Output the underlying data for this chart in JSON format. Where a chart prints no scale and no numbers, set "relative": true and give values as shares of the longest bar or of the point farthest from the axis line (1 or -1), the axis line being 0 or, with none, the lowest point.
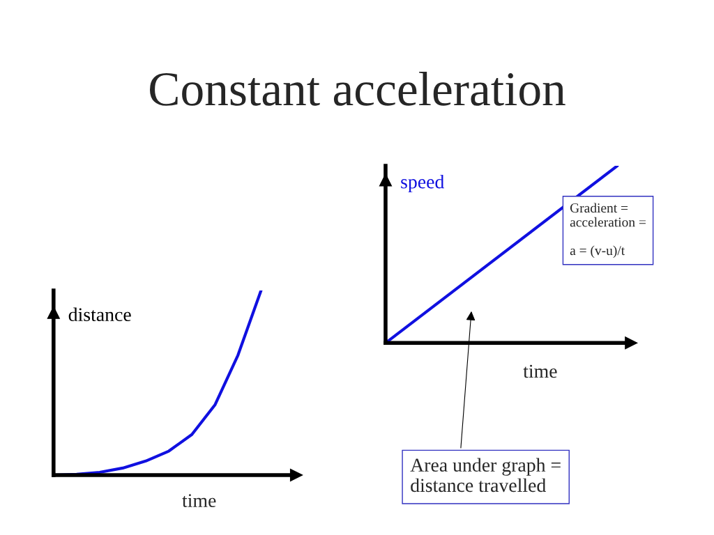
{
  "chart_data": [
    {
      "type": "other",
      "title": "Constant acceleration"
    },
    {
      "type": "line",
      "xlabel": "time",
      "ylabel": "distance",
      "relative": true,
      "categories": [
        null,
        null,
        null,
        null,
        null,
        null,
        null,
        null,
        null,
        null
      ],
      "series": [
        {
          "color": "#1010e0",
          "values": [
            0,
            0.004,
            0.015,
            0.038,
            0.076,
            0.13,
            0.22,
            0.38,
            0.65,
            1
          ]
        }
      ]
    },
    {
      "type": "line",
      "xlabel": "time",
      "ylabel": "speed",
      "relative": true,
      "categories": [
        null,
        null
      ],
      "series": [
        {
          "color": "#1010e0",
          "values": [
            0,
            1
          ]
        }
      ],
      "annotations": [
        "Gradient =\nacceleration =\n\na = (v-u)/t",
        "Area under graph =\ndistance travelled"
      ]
    }
  ]
}
